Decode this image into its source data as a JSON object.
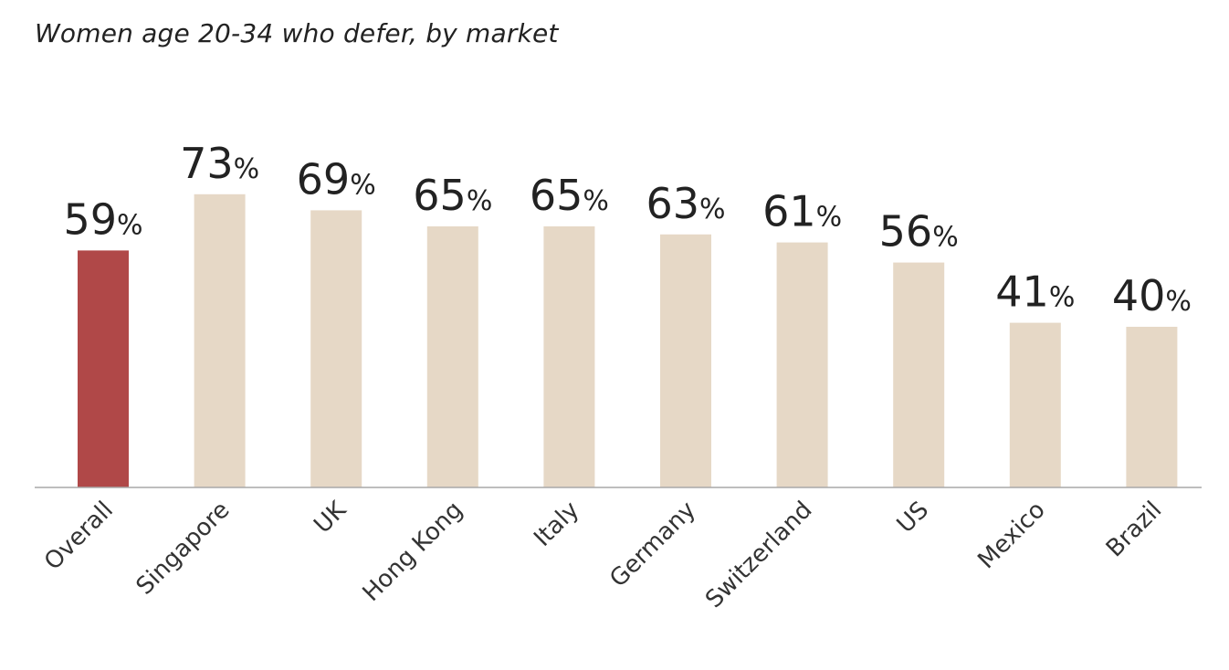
{
  "chart_data": {
    "type": "bar",
    "title": "Women age 20-34 who defer, by market",
    "categories": [
      "Overall",
      "Singapore",
      "UK",
      "Hong Kong",
      "Italy",
      "Germany",
      "Switzerland",
      "US",
      "Mexico",
      "Brazil"
    ],
    "values": [
      59,
      73,
      69,
      65,
      65,
      63,
      61,
      56,
      41,
      40
    ],
    "unit_suffix": "%",
    "ylim": [
      0,
      100
    ],
    "grid": false,
    "legend": "none",
    "colors": {
      "highlight": "#b04848",
      "bar": "#e6d8c6",
      "axis": "#a8a8a8"
    },
    "highlight_index": 0
  }
}
